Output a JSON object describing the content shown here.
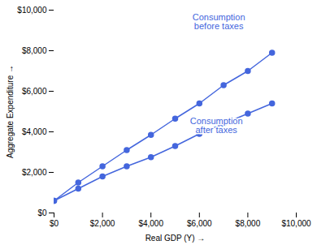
{
  "chart_data": {
    "type": "line",
    "xlabel": "Real GDP (Y)",
    "ylabel": "Aggregate Expenditure",
    "x": [
      0,
      1000,
      2000,
      3000,
      4000,
      5000,
      6000,
      7000,
      8000,
      9000
    ],
    "series": [
      {
        "color": "#4466dd",
        "values": [
          600,
          1500,
          2300,
          3100,
          3850,
          4650,
          5400,
          6300,
          7000,
          7900
        ]
      },
      {
        "color": "#4466dd",
        "values": [
          600,
          1200,
          1800,
          2300,
          2750,
          3300,
          3900,
          4400,
          4900,
          5400
        ]
      }
    ],
    "color": "#4466dd",
    "marker": "circle",
    "annotations": [
      {
        "text": "Consumption\nbefore taxes",
        "x": 6800,
        "y": 9800
      },
      {
        "text": "Consumption\nafter taxes",
        "x": 6700,
        "y": 4700
      }
    ],
    "xlim": [
      0,
      10000
    ],
    "ylim": [
      0,
      10000
    ],
    "xticks": [
      {
        "value": 0,
        "label": "$0"
      },
      {
        "value": 2000,
        "label": "$2,000"
      },
      {
        "value": 4000,
        "label": "$4,000"
      },
      {
        "value": 6000,
        "label": "$6,000"
      },
      {
        "value": 8000,
        "label": "$8,000"
      },
      {
        "value": 10000,
        "label": "$10,000"
      }
    ],
    "yticks": [
      {
        "value": 0,
        "label": "$0"
      },
      {
        "value": 2000,
        "label": "$2,000"
      },
      {
        "value": 4000,
        "label": "$4,000"
      },
      {
        "value": 6000,
        "label": "$6,000"
      },
      {
        "value": 8000,
        "label": "$8,000"
      },
      {
        "value": 10000,
        "label": "$10,000"
      }
    ]
  }
}
